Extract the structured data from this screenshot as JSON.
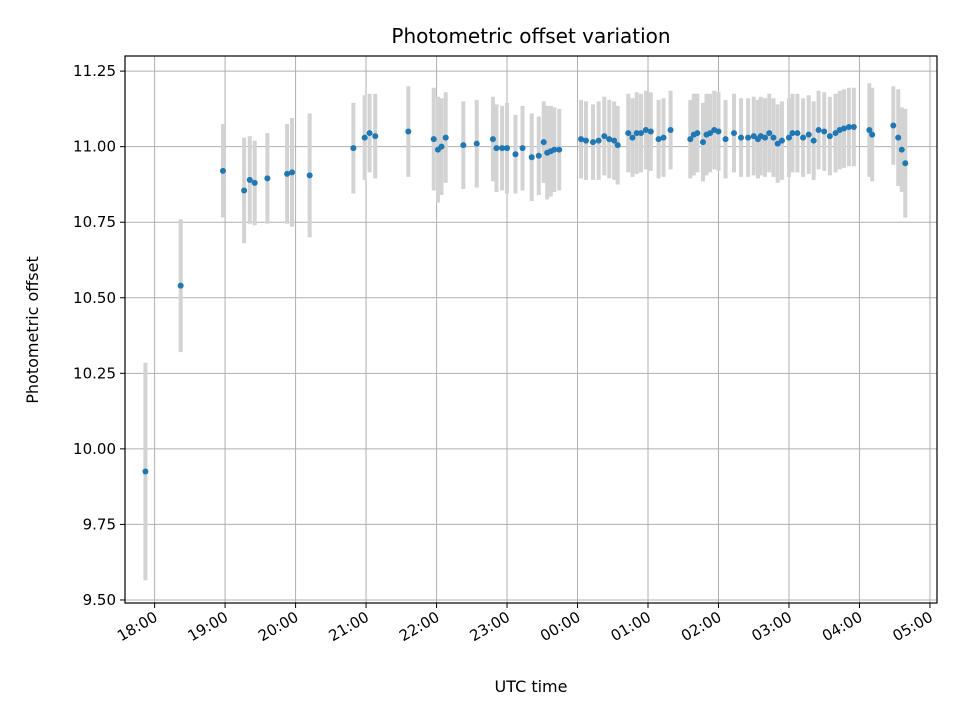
{
  "chart_data": {
    "type": "scatter",
    "title": "Photometric offset variation",
    "xlabel": "UTC time",
    "ylabel": "Photometric offset",
    "x_unit": "hours after 18:00 UTC",
    "xlim": [
      -0.42,
      11.1
    ],
    "ylim": [
      9.49,
      11.3
    ],
    "grid": true,
    "colors": {
      "point": "#1f77b4",
      "errorbar": "#d3d3d3",
      "grid": "#b0b0b0"
    },
    "xticks": [
      {
        "v": 0,
        "label": "18:00"
      },
      {
        "v": 1,
        "label": "19:00"
      },
      {
        "v": 2,
        "label": "20:00"
      },
      {
        "v": 3,
        "label": "21:00"
      },
      {
        "v": 4,
        "label": "22:00"
      },
      {
        "v": 5,
        "label": "23:00"
      },
      {
        "v": 6,
        "label": "00:00"
      },
      {
        "v": 7,
        "label": "01:00"
      },
      {
        "v": 8,
        "label": "02:00"
      },
      {
        "v": 9,
        "label": "03:00"
      },
      {
        "v": 10,
        "label": "04:00"
      },
      {
        "v": 11,
        "label": "05:00"
      }
    ],
    "yticks": [
      {
        "v": 9.5,
        "label": "9.50"
      },
      {
        "v": 9.75,
        "label": "9.75"
      },
      {
        "v": 10.0,
        "label": "10.00"
      },
      {
        "v": 10.25,
        "label": "10.25"
      },
      {
        "v": 10.5,
        "label": "10.50"
      },
      {
        "v": 10.75,
        "label": "10.75"
      },
      {
        "v": 11.0,
        "label": "11.00"
      },
      {
        "v": 11.25,
        "label": "11.25"
      }
    ],
    "points": [
      [
        -0.13,
        9.925,
        0.36
      ],
      [
        0.37,
        10.54,
        0.22
      ],
      [
        0.97,
        10.92,
        0.155
      ],
      [
        1.27,
        10.855,
        0.175
      ],
      [
        1.35,
        10.89,
        0.145
      ],
      [
        1.42,
        10.88,
        0.14
      ],
      [
        1.6,
        10.895,
        0.15
      ],
      [
        1.88,
        10.91,
        0.165
      ],
      [
        1.95,
        10.915,
        0.18
      ],
      [
        2.2,
        10.905,
        0.205
      ],
      [
        2.82,
        10.995,
        0.15
      ],
      [
        2.98,
        11.03,
        0.14
      ],
      [
        3.05,
        11.045,
        0.13
      ],
      [
        3.13,
        11.035,
        0.14
      ],
      [
        3.6,
        11.05,
        0.15
      ],
      [
        3.96,
        11.025,
        0.17
      ],
      [
        4.02,
        10.99,
        0.175
      ],
      [
        4.07,
        11.0,
        0.16
      ],
      [
        4.13,
        11.03,
        0.15
      ],
      [
        4.38,
        11.005,
        0.145
      ],
      [
        4.57,
        11.01,
        0.145
      ],
      [
        4.8,
        11.025,
        0.14
      ],
      [
        4.85,
        10.995,
        0.145
      ],
      [
        4.93,
        10.995,
        0.14
      ],
      [
        5.0,
        10.995,
        0.15
      ],
      [
        5.12,
        10.975,
        0.13
      ],
      [
        5.22,
        10.995,
        0.14
      ],
      [
        5.35,
        10.965,
        0.145
      ],
      [
        5.45,
        10.97,
        0.13
      ],
      [
        5.52,
        11.015,
        0.135
      ],
      [
        5.57,
        10.98,
        0.155
      ],
      [
        5.62,
        10.985,
        0.15
      ],
      [
        5.67,
        10.99,
        0.14
      ],
      [
        5.74,
        10.99,
        0.135
      ],
      [
        6.05,
        11.025,
        0.13
      ],
      [
        6.12,
        11.02,
        0.13
      ],
      [
        6.22,
        11.015,
        0.125
      ],
      [
        6.3,
        11.02,
        0.13
      ],
      [
        6.38,
        11.035,
        0.13
      ],
      [
        6.45,
        11.025,
        0.13
      ],
      [
        6.52,
        11.02,
        0.13
      ],
      [
        6.57,
        11.005,
        0.13
      ],
      [
        6.72,
        11.045,
        0.13
      ],
      [
        6.78,
        11.03,
        0.13
      ],
      [
        6.84,
        11.045,
        0.135
      ],
      [
        6.9,
        11.045,
        0.13
      ],
      [
        6.97,
        11.055,
        0.13
      ],
      [
        7.04,
        11.05,
        0.13
      ],
      [
        7.15,
        11.025,
        0.13
      ],
      [
        7.22,
        11.03,
        0.13
      ],
      [
        7.32,
        11.055,
        0.13
      ],
      [
        7.6,
        11.025,
        0.13
      ],
      [
        7.65,
        11.04,
        0.135
      ],
      [
        7.7,
        11.045,
        0.13
      ],
      [
        7.78,
        11.015,
        0.13
      ],
      [
        7.83,
        11.04,
        0.135
      ],
      [
        7.88,
        11.045,
        0.13
      ],
      [
        7.94,
        11.055,
        0.13
      ],
      [
        8.0,
        11.05,
        0.13
      ],
      [
        8.1,
        11.025,
        0.13
      ],
      [
        8.22,
        11.045,
        0.13
      ],
      [
        8.32,
        11.03,
        0.13
      ],
      [
        8.42,
        11.03,
        0.13
      ],
      [
        8.5,
        11.035,
        0.13
      ],
      [
        8.56,
        11.025,
        0.13
      ],
      [
        8.6,
        11.035,
        0.13
      ],
      [
        8.66,
        11.03,
        0.13
      ],
      [
        8.72,
        11.045,
        0.13
      ],
      [
        8.78,
        11.03,
        0.13
      ],
      [
        8.84,
        11.01,
        0.13
      ],
      [
        8.9,
        11.02,
        0.13
      ],
      [
        9.0,
        11.03,
        0.13
      ],
      [
        9.05,
        11.045,
        0.13
      ],
      [
        9.12,
        11.045,
        0.13
      ],
      [
        9.2,
        11.03,
        0.13
      ],
      [
        9.28,
        11.04,
        0.13
      ],
      [
        9.35,
        11.02,
        0.13
      ],
      [
        9.42,
        11.055,
        0.13
      ],
      [
        9.5,
        11.05,
        0.13
      ],
      [
        9.58,
        11.035,
        0.13
      ],
      [
        9.66,
        11.045,
        0.13
      ],
      [
        9.72,
        11.055,
        0.13
      ],
      [
        9.78,
        11.06,
        0.13
      ],
      [
        9.85,
        11.065,
        0.13
      ],
      [
        9.92,
        11.065,
        0.13
      ],
      [
        10.14,
        11.055,
        0.155
      ],
      [
        10.18,
        11.04,
        0.155
      ],
      [
        10.48,
        11.07,
        0.13
      ],
      [
        10.55,
        11.03,
        0.16
      ],
      [
        10.6,
        10.99,
        0.14
      ],
      [
        10.65,
        10.945,
        0.18
      ]
    ]
  }
}
